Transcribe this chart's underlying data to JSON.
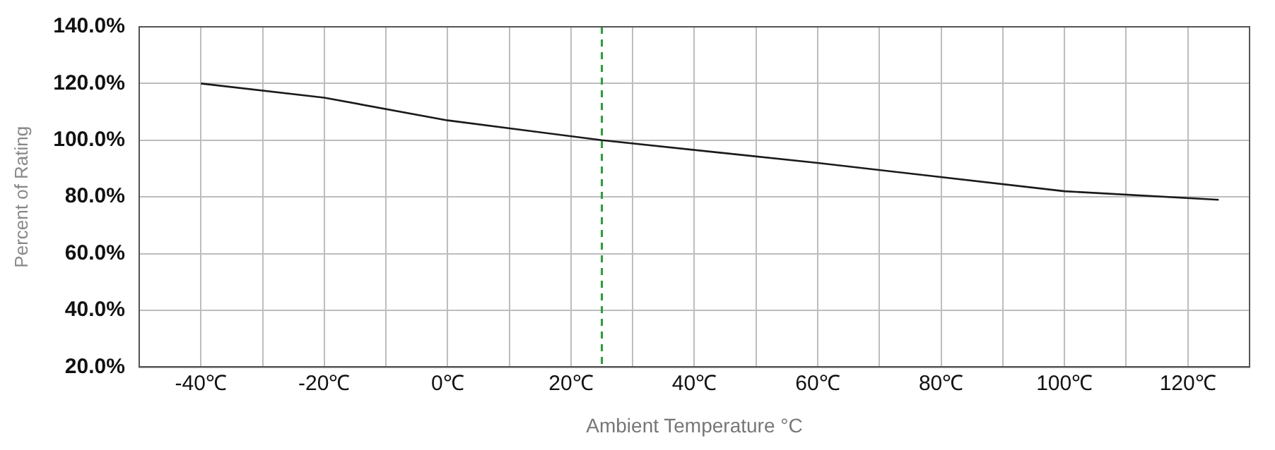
{
  "chart_data": {
    "type": "line",
    "xlabel": "Ambient Temperature °C",
    "ylabel": "Percent of Rating",
    "x": [
      -40,
      -20,
      0,
      25,
      60,
      100,
      125
    ],
    "series": [
      {
        "color": "#1a1a1a",
        "values": [
          120,
          115,
          107,
          100,
          92,
          82,
          79
        ]
      }
    ],
    "xlim": [
      -50,
      130
    ],
    "xticks": [
      {
        "value": -50,
        "label": null
      },
      {
        "value": -40,
        "label": "-40℃"
      },
      {
        "value": -30,
        "label": null
      },
      {
        "value": -20,
        "label": "-20℃"
      },
      {
        "value": -10,
        "label": null
      },
      {
        "value": 0,
        "label": "0℃"
      },
      {
        "value": 10,
        "label": null
      },
      {
        "value": 20,
        "label": "20℃"
      },
      {
        "value": 30,
        "label": null
      },
      {
        "value": 40,
        "label": "40℃"
      },
      {
        "value": 50,
        "label": null
      },
      {
        "value": 60,
        "label": "60℃"
      },
      {
        "value": 70,
        "label": null
      },
      {
        "value": 80,
        "label": "80℃"
      },
      {
        "value": 90,
        "label": null
      },
      {
        "value": 100,
        "label": "100℃"
      },
      {
        "value": 110,
        "label": null
      },
      {
        "value": 120,
        "label": "120℃"
      },
      {
        "value": 130,
        "label": null
      }
    ],
    "ylim": [
      20,
      140
    ],
    "yticks": [
      {
        "value": 20,
        "label": "20.0%"
      },
      {
        "value": 40,
        "label": "40.0%"
      },
      {
        "value": 60,
        "label": "60.0%"
      },
      {
        "value": 80,
        "label": "80.0%"
      },
      {
        "value": 100,
        "label": "100.0%"
      },
      {
        "value": 120,
        "label": "120.0%"
      },
      {
        "value": 140,
        "label": "140.0%"
      }
    ],
    "ref_lines": [
      {
        "axis": "x",
        "value": 25,
        "color": "#2e9a3a",
        "line_style": "dashed"
      }
    ],
    "grid": true,
    "marker": "none",
    "line_style": "solid"
  }
}
